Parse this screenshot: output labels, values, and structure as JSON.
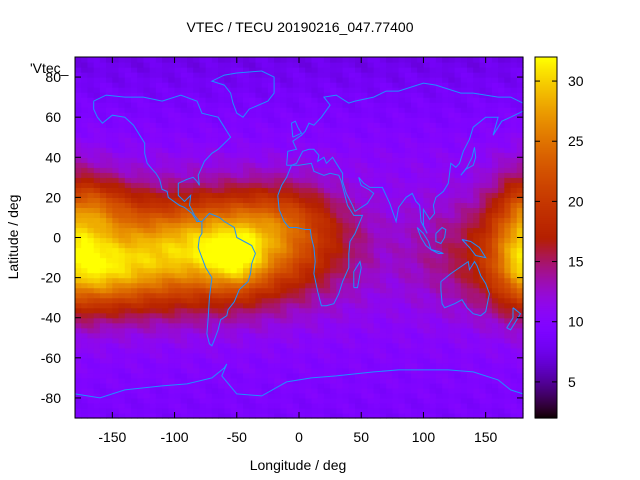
{
  "chart_data": {
    "type": "heatmap",
    "title": "VTEC / TECU 20190216_047.77400",
    "xlabel": "Longitude / deg",
    "ylabel": "Latitude / deg",
    "key_label": "'Vtec_",
    "xlim": [
      -180,
      180
    ],
    "ylim": [
      -90,
      90
    ],
    "x_ticks": [
      -150,
      -100,
      -50,
      0,
      50,
      100,
      150
    ],
    "y_ticks": [
      -80,
      -60,
      -40,
      -20,
      0,
      20,
      40,
      60,
      80
    ],
    "colorbar": {
      "range": [
        2,
        32
      ],
      "ticks": [
        5,
        10,
        15,
        20,
        25,
        30
      ],
      "palette": "gnuplot-rgbformulae-7-5-15"
    },
    "value_blobs": [
      {
        "lon": -110,
        "lat": -8,
        "sx": 85,
        "sy": 19,
        "amp": 14
      },
      {
        "lon": -50,
        "lat": -2,
        "sx": 50,
        "sy": 16,
        "amp": 9
      },
      {
        "lon": -155,
        "lat": -18,
        "sx": 30,
        "sy": 12,
        "amp": 7
      },
      {
        "lon": -160,
        "lat": 16,
        "sx": 22,
        "sy": 10,
        "amp": 5
      },
      {
        "lon": -50,
        "lat": -13,
        "sx": 15,
        "sy": 10,
        "amp": 5
      },
      {
        "lon": -10,
        "lat": 12,
        "sx": 30,
        "sy": 12,
        "amp": 4
      },
      {
        "lon": 180,
        "lat": 0,
        "sx": 18,
        "sy": 22,
        "amp": 8
      }
    ],
    "background": {
      "base": 10.5,
      "cold_polar_north": -3,
      "cold_polar_south": -1.5
    }
  },
  "colors": {
    "coastline": "#1e90ff",
    "frame": "#000000"
  }
}
